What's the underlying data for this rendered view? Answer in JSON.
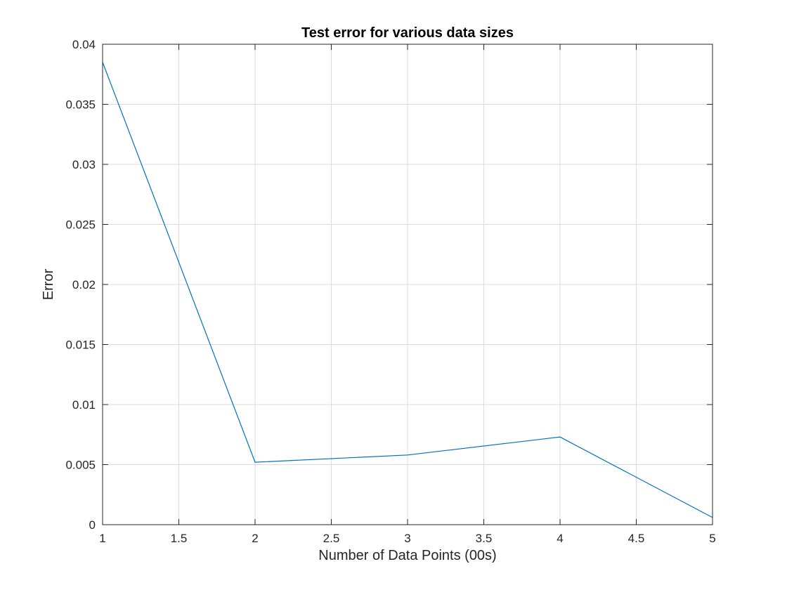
{
  "chart_data": {
    "type": "line",
    "title": "Test error for various data sizes",
    "xlabel": "Number of Data Points (00s)",
    "ylabel": "Error",
    "xlim": [
      1,
      5
    ],
    "ylim": [
      0,
      0.04
    ],
    "xticks": [
      1,
      1.5,
      2,
      2.5,
      3,
      3.5,
      4,
      4.5,
      5
    ],
    "xtick_labels": [
      "1",
      "1.5",
      "2",
      "2.5",
      "3",
      "3.5",
      "4",
      "4.5",
      "5"
    ],
    "yticks": [
      0,
      0.005,
      0.01,
      0.015,
      0.02,
      0.025,
      0.03,
      0.035,
      0.04
    ],
    "ytick_labels": [
      "0",
      "0.005",
      "0.01",
      "0.015",
      "0.02",
      "0.025",
      "0.03",
      "0.035",
      "0.04"
    ],
    "grid": true,
    "series": [
      {
        "x": [
          1,
          2,
          3,
          4,
          5
        ],
        "values": [
          0.0385,
          0.0052,
          0.0058,
          0.0073,
          0.0006
        ],
        "color": "#0072bd"
      }
    ]
  }
}
